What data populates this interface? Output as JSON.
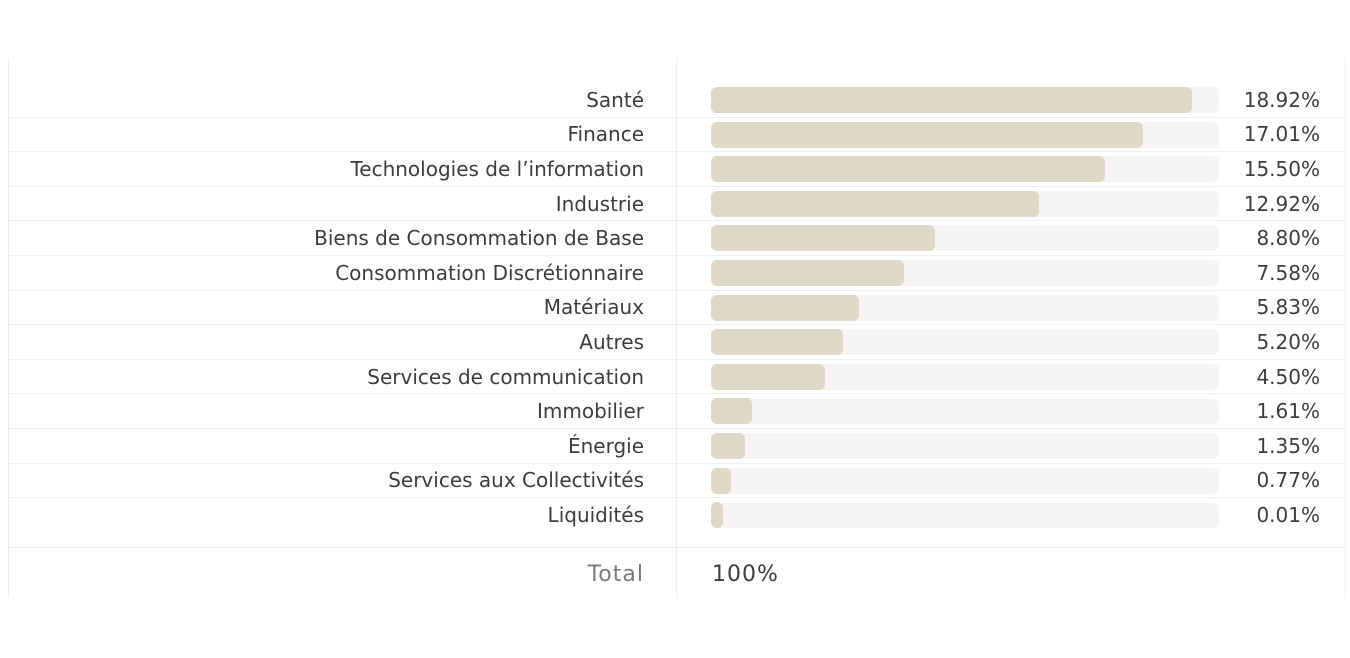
{
  "chart_data": {
    "type": "bar",
    "orientation": "horizontal",
    "categories": [
      "Santé",
      "Finance",
      "Technologies de l’information",
      "Industrie",
      "Biens de Consommation de Base",
      "Consommation Discrétionnaire",
      "Matériaux",
      "Autres",
      "Services de communication",
      "Immobilier",
      "Énergie",
      "Services aux Collectivités",
      "Liquidités"
    ],
    "values": [
      18.92,
      17.01,
      15.5,
      12.92,
      8.8,
      7.58,
      5.83,
      5.2,
      4.5,
      1.61,
      1.35,
      0.77,
      0.01
    ],
    "value_labels": [
      "18.92%",
      "17.01%",
      "15.50%",
      "12.92%",
      "8.80%",
      "7.58%",
      "5.83%",
      "5.20%",
      "4.50%",
      "1.61%",
      "1.35%",
      "0.77%",
      "0.01%"
    ],
    "xlim": [
      0,
      20
    ],
    "grid": false,
    "colors": {
      "bar": "#ded8c6",
      "track": "#f6f4f4"
    }
  },
  "total": {
    "label": "Total",
    "value": "100%"
  }
}
